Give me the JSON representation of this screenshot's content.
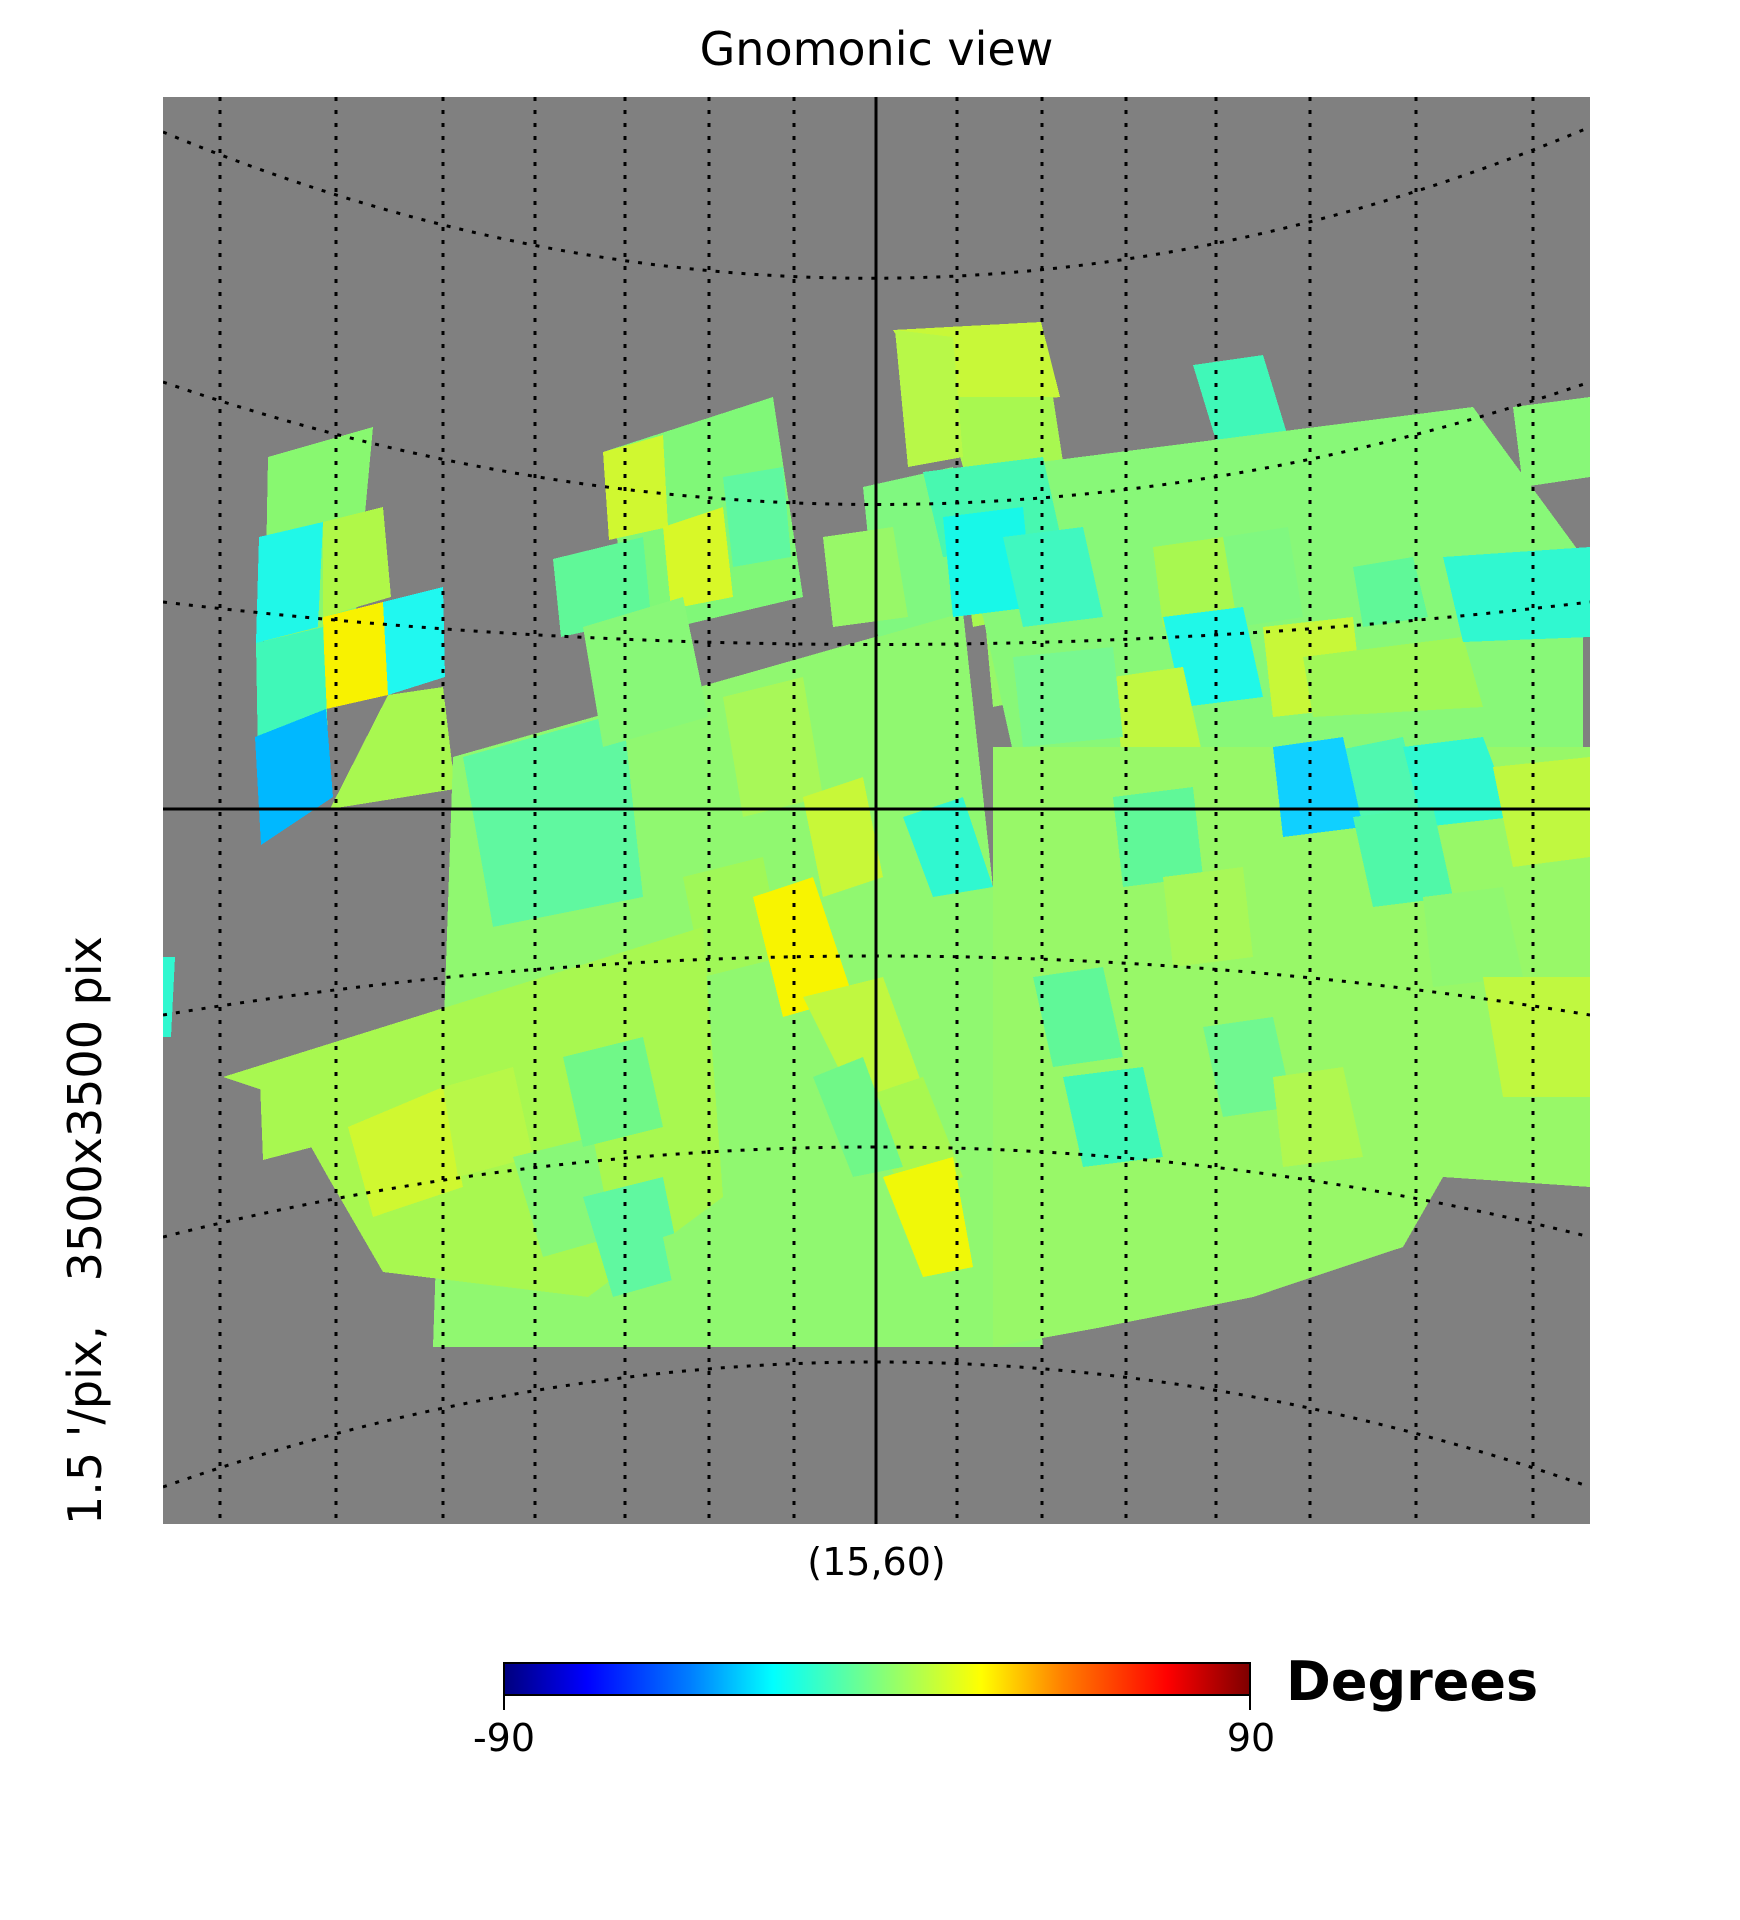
{
  "title": "Gnomonic view",
  "side_label": "1.5 '/pix,   3500x3500 pix",
  "center_label": "(15,60)",
  "colorbar": {
    "unit": "Degrees",
    "min_label": "-90",
    "max_label": "90",
    "min": -90,
    "max": 90,
    "colormap": "jet"
  },
  "colors": {
    "background_unseen": "#808080",
    "graticule": "#000000"
  }
}
